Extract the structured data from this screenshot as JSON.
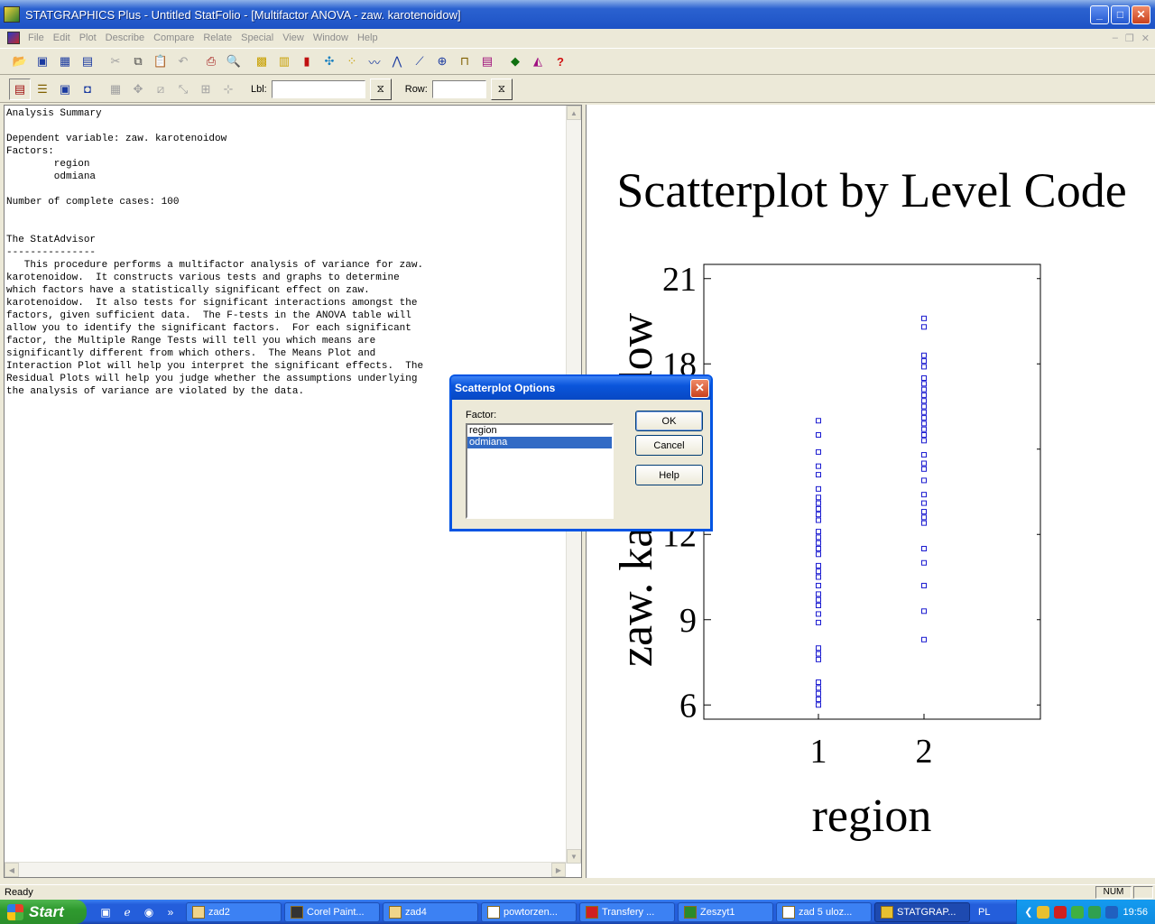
{
  "window": {
    "title": "STATGRAPHICS Plus - Untitled StatFolio - [Multifactor ANOVA - zaw. karotenoidow]",
    "minimize_icon": "minimize-icon",
    "maximize_icon": "maximize-icon",
    "close_icon": "close-icon"
  },
  "menu": [
    "File",
    "Edit",
    "Plot",
    "Describe",
    "Compare",
    "Relate",
    "Special",
    "View",
    "Window",
    "Help"
  ],
  "toolbar2": {
    "lbl_label": "Lbl:",
    "lbl_value": "",
    "row_label": "Row:",
    "row_value": ""
  },
  "analysis_text": "Analysis Summary\n\nDependent variable: zaw. karotenoidow\nFactors:\n        region\n        odmiana\n\nNumber of complete cases: 100\n\n\nThe StatAdvisor\n---------------\n   This procedure performs a multifactor analysis of variance for zaw.\nkarotenoidow.  It constructs various tests and graphs to determine\nwhich factors have a statistically significant effect on zaw.\nkarotenoidow.  It also tests for significant interactions amongst the\nfactors, given sufficient data.  The F-tests in the ANOVA table will\nallow you to identify the significant factors.  For each significant\nfactor, the Multiple Range Tests will tell you which means are\nsignificantly different from which others.  The Means Plot and\nInteraction Plot will help you interpret the significant effects.  The\nResidual Plots will help you judge whether the assumptions underlying\nthe analysis of variance are violated by the data.",
  "chart_data": {
    "type": "scatter",
    "title": "Scatterplot by Level Code",
    "xlabel": "region",
    "ylabel": "zaw. karotenoidow",
    "categories": [
      "1",
      "2"
    ],
    "yticks": [
      "6",
      "9",
      "12",
      "15",
      "18",
      "21"
    ],
    "ylim": [
      5.5,
      21.5
    ],
    "series": [
      {
        "name": "1",
        "x": 1,
        "values": [
          6.0,
          6.2,
          6.4,
          6.6,
          6.8,
          7.6,
          7.8,
          8.0,
          8.9,
          9.2,
          9.5,
          9.7,
          9.9,
          10.2,
          10.5,
          10.7,
          10.9,
          11.3,
          11.5,
          11.7,
          11.9,
          12.1,
          12.5,
          12.7,
          12.9,
          13.1,
          13.3,
          13.6,
          14.1,
          14.4,
          14.9,
          15.5,
          16.0
        ]
      },
      {
        "name": "2",
        "x": 2,
        "values": [
          8.3,
          9.3,
          10.2,
          11.0,
          11.5,
          12.4,
          12.6,
          12.8,
          13.1,
          13.4,
          13.9,
          14.3,
          14.5,
          14.8,
          15.3,
          15.5,
          15.7,
          15.9,
          16.1,
          16.3,
          16.5,
          16.7,
          16.9,
          17.1,
          17.3,
          17.5,
          17.9,
          18.1,
          18.3,
          19.3,
          19.6
        ]
      }
    ]
  },
  "dialog": {
    "title": "Scatterplot Options",
    "factor_label": "Factor:",
    "options": [
      "region",
      "odmiana"
    ],
    "selected": "odmiana",
    "ok": "OK",
    "cancel": "Cancel",
    "help": "Help"
  },
  "status": {
    "text": "Ready",
    "num": "NUM"
  },
  "taskbar": {
    "start": "Start",
    "tasks": [
      "zad2",
      "Corel Paint...",
      "zad4",
      "powtorzen...",
      "Transfery ...",
      "Zeszyt1",
      "zad 5 uloz...",
      "STATGRAP..."
    ],
    "active_task": "STATGRAP...",
    "language": "PL",
    "clock": "19:56"
  }
}
